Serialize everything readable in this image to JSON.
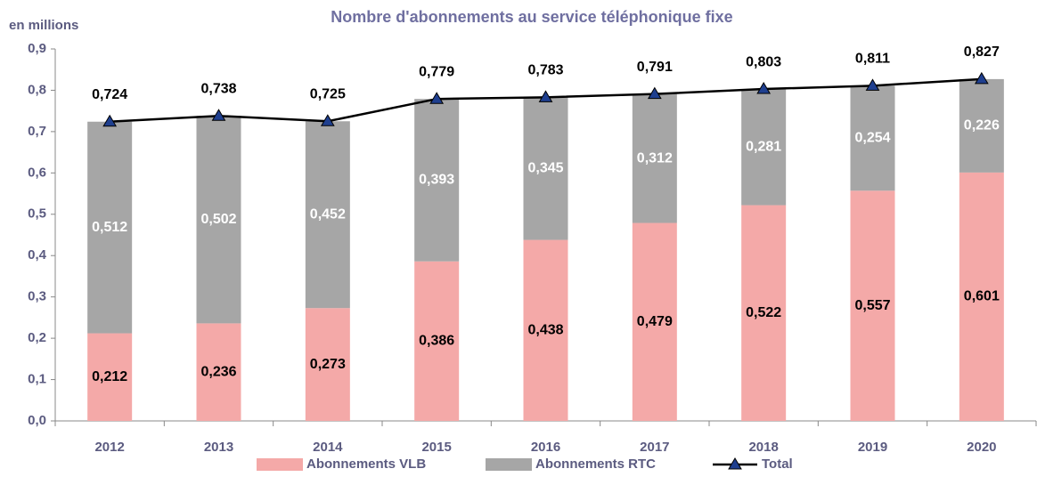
{
  "chart_data": {
    "type": "bar",
    "stacked": true,
    "title": "Nombre d'abonnements au service téléphonique fixe",
    "y_label": "en millions",
    "categories": [
      "2012",
      "2013",
      "2014",
      "2015",
      "2016",
      "2017",
      "2018",
      "2019",
      "2020"
    ],
    "series": [
      {
        "name": "Abonnements VLB",
        "type": "bar",
        "color": "#f4a9a8",
        "values": [
          0.212,
          0.236,
          0.273,
          0.386,
          0.438,
          0.479,
          0.522,
          0.557,
          0.601
        ],
        "value_labels": [
          "0,212",
          "0,236",
          "0,273",
          "0,386",
          "0,438",
          "0,479",
          "0,522",
          "0,557",
          "0,601"
        ]
      },
      {
        "name": "Abonnements RTC",
        "type": "bar",
        "color": "#a6a6a6",
        "values": [
          0.512,
          0.502,
          0.452,
          0.393,
          0.345,
          0.312,
          0.281,
          0.254,
          0.226
        ],
        "value_labels": [
          "0,512",
          "0,502",
          "0,452",
          "0,393",
          "0,345",
          "0,312",
          "0,281",
          "0,254",
          "0,226"
        ]
      },
      {
        "name": "Total",
        "type": "line",
        "color": "#000000",
        "marker_color": "#1f3f8f",
        "values": [
          0.724,
          0.738,
          0.725,
          0.779,
          0.783,
          0.791,
          0.803,
          0.811,
          0.827
        ],
        "value_labels": [
          "0,724",
          "0,738",
          "0,725",
          "0,779",
          "0,783",
          "0,791",
          "0,803",
          "0,811",
          "0,827"
        ]
      }
    ],
    "ylim": [
      0,
      0.9
    ],
    "yticks": [
      {
        "value": 0,
        "label": "0,0"
      },
      {
        "value": 0.1,
        "label": "0,1"
      },
      {
        "value": 0.2,
        "label": "0,2"
      },
      {
        "value": 0.3,
        "label": "0,3"
      },
      {
        "value": 0.4,
        "label": "0,4"
      },
      {
        "value": 0.5,
        "label": "0,5"
      },
      {
        "value": 0.6,
        "label": "0,6"
      },
      {
        "value": 0.7,
        "label": "0,7"
      },
      {
        "value": 0.8,
        "label": "0,8"
      },
      {
        "value": 0.9,
        "label": "0,9"
      }
    ],
    "grid": false,
    "legend": "bottom"
  }
}
